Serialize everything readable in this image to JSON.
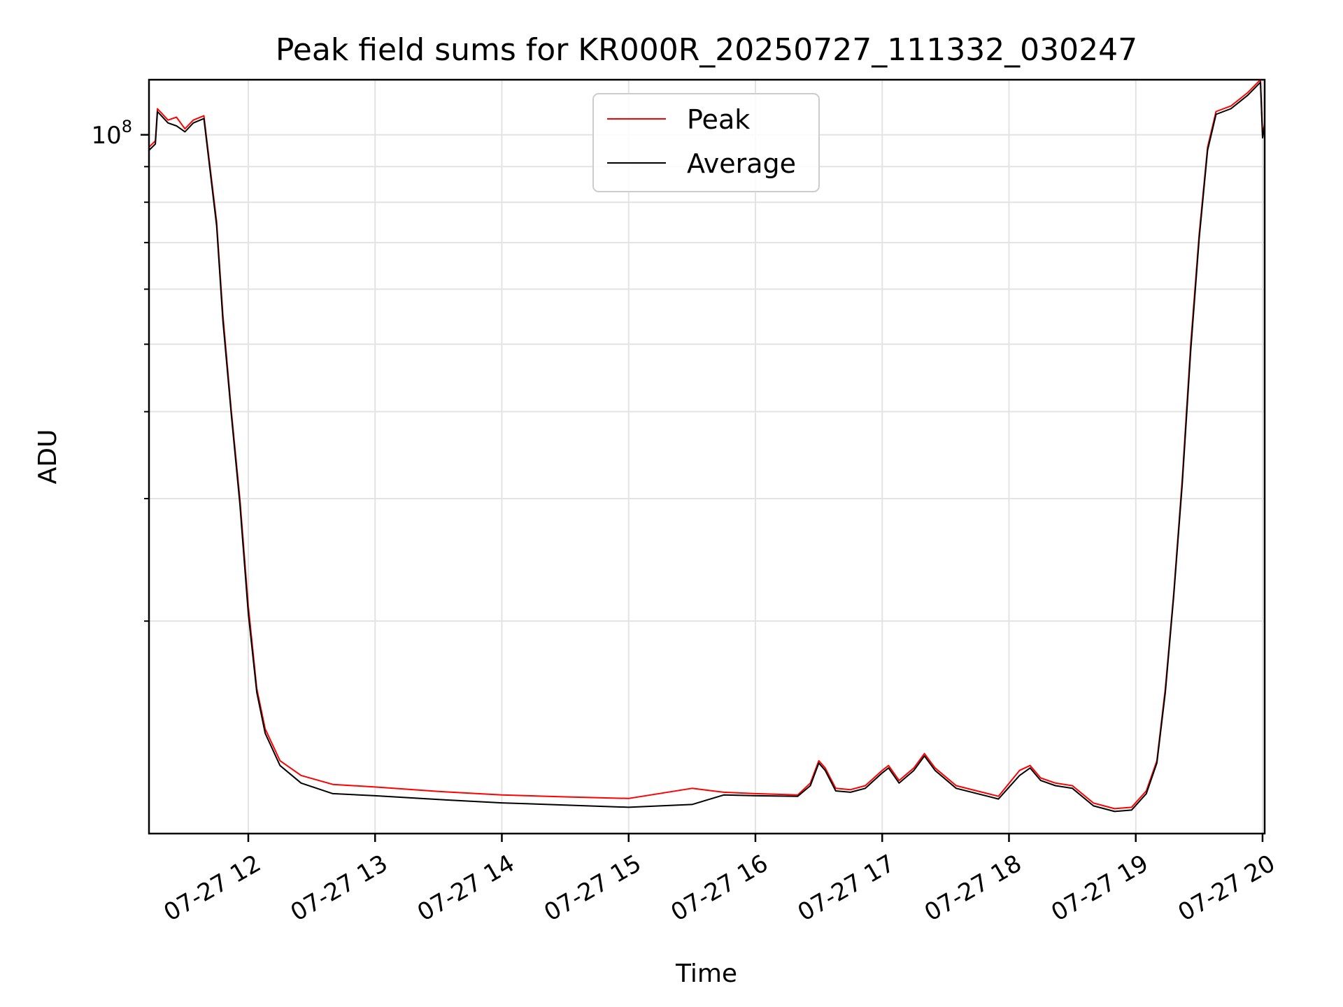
{
  "chart_data": {
    "type": "line",
    "title": "Peak field sums for KR000R_20250727_111332_030247",
    "xlabel": "Time",
    "ylabel": "ADU",
    "y_scale": "log",
    "ylim": [
      9900000,
      120000000
    ],
    "xlim": [
      "2025-07-27 11:13",
      "2025-07-27 20:01"
    ],
    "grid": true,
    "legend_position": "top-center",
    "x_ticks": [
      {
        "value": "2025-07-27 12:00",
        "label": "07-27 12"
      },
      {
        "value": "2025-07-27 13:00",
        "label": "07-27 13"
      },
      {
        "value": "2025-07-27 14:00",
        "label": "07-27 14"
      },
      {
        "value": "2025-07-27 15:00",
        "label": "07-27 15"
      },
      {
        "value": "2025-07-27 16:00",
        "label": "07-27 16"
      },
      {
        "value": "2025-07-27 17:00",
        "label": "07-27 17"
      },
      {
        "value": "2025-07-27 18:00",
        "label": "07-27 18"
      },
      {
        "value": "2025-07-27 19:00",
        "label": "07-27 19"
      },
      {
        "value": "2025-07-27 20:00",
        "label": "07-27 20"
      }
    ],
    "y_major_ticks": [
      {
        "value": 100000000,
        "base": "10",
        "exponent": "8"
      }
    ],
    "y_minor_ticks": [
      20000000,
      30000000,
      40000000,
      50000000,
      60000000,
      70000000,
      80000000,
      90000000
    ],
    "series": [
      {
        "name": "Peak",
        "color": "#ff0000",
        "points": [
          [
            "2025-07-27 11:13",
            96000000
          ],
          [
            "2025-07-27 11:16",
            98000000
          ],
          [
            "2025-07-27 11:17",
            109000000
          ],
          [
            "2025-07-27 11:22",
            105000000
          ],
          [
            "2025-07-27 11:26",
            106000000
          ],
          [
            "2025-07-27 11:30",
            102000000
          ],
          [
            "2025-07-27 11:34",
            105000000
          ],
          [
            "2025-07-27 11:39",
            106500000
          ],
          [
            "2025-07-27 11:45",
            75000000
          ],
          [
            "2025-07-27 11:48",
            55000000
          ],
          [
            "2025-07-27 11:52",
            40000000
          ],
          [
            "2025-07-27 11:56",
            30000000
          ],
          [
            "2025-07-27 12:00",
            21000000
          ],
          [
            "2025-07-27 12:04",
            16000000
          ],
          [
            "2025-07-27 12:08",
            14000000
          ],
          [
            "2025-07-27 12:15",
            12600000
          ],
          [
            "2025-07-27 12:25",
            12000000
          ],
          [
            "2025-07-27 12:40",
            11650000
          ],
          [
            "2025-07-27 13:00",
            11550000
          ],
          [
            "2025-07-27 13:30",
            11380000
          ],
          [
            "2025-07-27 14:00",
            11250000
          ],
          [
            "2025-07-27 14:30",
            11180000
          ],
          [
            "2025-07-27 15:00",
            11120000
          ],
          [
            "2025-07-27 15:30",
            11500000
          ],
          [
            "2025-07-27 15:45",
            11350000
          ],
          [
            "2025-07-27 16:00",
            11300000
          ],
          [
            "2025-07-27 16:20",
            11250000
          ],
          [
            "2025-07-27 16:26",
            11700000
          ],
          [
            "2025-07-27 16:30",
            12600000
          ],
          [
            "2025-07-27 16:33",
            12300000
          ],
          [
            "2025-07-27 16:38",
            11500000
          ],
          [
            "2025-07-27 16:45",
            11450000
          ],
          [
            "2025-07-27 16:52",
            11600000
          ],
          [
            "2025-07-27 17:00",
            12200000
          ],
          [
            "2025-07-27 17:03",
            12400000
          ],
          [
            "2025-07-27 17:08",
            11800000
          ],
          [
            "2025-07-27 17:15",
            12300000
          ],
          [
            "2025-07-27 17:20",
            12900000
          ],
          [
            "2025-07-27 17:25",
            12300000
          ],
          [
            "2025-07-27 17:35",
            11600000
          ],
          [
            "2025-07-27 17:50",
            11300000
          ],
          [
            "2025-07-27 17:55",
            11200000
          ],
          [
            "2025-07-27 18:05",
            12200000
          ],
          [
            "2025-07-27 18:10",
            12400000
          ],
          [
            "2025-07-27 18:15",
            11900000
          ],
          [
            "2025-07-27 18:22",
            11700000
          ],
          [
            "2025-07-27 18:30",
            11600000
          ],
          [
            "2025-07-27 18:40",
            10950000
          ],
          [
            "2025-07-27 18:50",
            10750000
          ],
          [
            "2025-07-27 18:58",
            10800000
          ],
          [
            "2025-07-27 19:05",
            11400000
          ],
          [
            "2025-07-27 19:10",
            12600000
          ],
          [
            "2025-07-27 19:14",
            16000000
          ],
          [
            "2025-07-27 19:18",
            22000000
          ],
          [
            "2025-07-27 19:22",
            32000000
          ],
          [
            "2025-07-27 19:26",
            50000000
          ],
          [
            "2025-07-27 19:30",
            72000000
          ],
          [
            "2025-07-27 19:34",
            96000000
          ],
          [
            "2025-07-27 19:38",
            108000000
          ],
          [
            "2025-07-27 19:45",
            110000000
          ],
          [
            "2025-07-27 19:53",
            115000000
          ],
          [
            "2025-07-27 19:59",
            120000000
          ],
          [
            "2025-07-27 20:00",
            100000000
          ],
          [
            "2025-07-27 20:01",
            104000000
          ]
        ]
      },
      {
        "name": "Average",
        "color": "#000000",
        "points": [
          [
            "2025-07-27 11:13",
            95000000
          ],
          [
            "2025-07-27 11:16",
            97000000
          ],
          [
            "2025-07-27 11:17",
            108000000
          ],
          [
            "2025-07-27 11:22",
            104000000
          ],
          [
            "2025-07-27 11:26",
            103000000
          ],
          [
            "2025-07-27 11:30",
            101000000
          ],
          [
            "2025-07-27 11:34",
            104000000
          ],
          [
            "2025-07-27 11:39",
            105500000
          ],
          [
            "2025-07-27 11:45",
            74000000
          ],
          [
            "2025-07-27 11:48",
            54000000
          ],
          [
            "2025-07-27 11:52",
            39500000
          ],
          [
            "2025-07-27 11:56",
            29500000
          ],
          [
            "2025-07-27 12:00",
            20500000
          ],
          [
            "2025-07-27 12:04",
            15800000
          ],
          [
            "2025-07-27 12:08",
            13800000
          ],
          [
            "2025-07-27 12:15",
            12400000
          ],
          [
            "2025-07-27 12:25",
            11700000
          ],
          [
            "2025-07-27 12:40",
            11300000
          ],
          [
            "2025-07-27 13:00",
            11220000
          ],
          [
            "2025-07-27 13:30",
            11080000
          ],
          [
            "2025-07-27 14:00",
            10960000
          ],
          [
            "2025-07-27 14:30",
            10880000
          ],
          [
            "2025-07-27 15:00",
            10800000
          ],
          [
            "2025-07-27 15:30",
            10900000
          ],
          [
            "2025-07-27 15:45",
            11250000
          ],
          [
            "2025-07-27 16:00",
            11220000
          ],
          [
            "2025-07-27 16:20",
            11200000
          ],
          [
            "2025-07-27 16:26",
            11600000
          ],
          [
            "2025-07-27 16:30",
            12500000
          ],
          [
            "2025-07-27 16:33",
            12200000
          ],
          [
            "2025-07-27 16:38",
            11400000
          ],
          [
            "2025-07-27 16:45",
            11350000
          ],
          [
            "2025-07-27 16:52",
            11500000
          ],
          [
            "2025-07-27 17:00",
            12100000
          ],
          [
            "2025-07-27 17:03",
            12300000
          ],
          [
            "2025-07-27 17:08",
            11700000
          ],
          [
            "2025-07-27 17:15",
            12200000
          ],
          [
            "2025-07-27 17:20",
            12800000
          ],
          [
            "2025-07-27 17:25",
            12200000
          ],
          [
            "2025-07-27 17:35",
            11500000
          ],
          [
            "2025-07-27 17:50",
            11200000
          ],
          [
            "2025-07-27 17:55",
            11100000
          ],
          [
            "2025-07-27 18:05",
            12000000
          ],
          [
            "2025-07-27 18:10",
            12300000
          ],
          [
            "2025-07-27 18:15",
            11800000
          ],
          [
            "2025-07-27 18:22",
            11600000
          ],
          [
            "2025-07-27 18:30",
            11500000
          ],
          [
            "2025-07-27 18:40",
            10850000
          ],
          [
            "2025-07-27 18:50",
            10650000
          ],
          [
            "2025-07-27 18:58",
            10700000
          ],
          [
            "2025-07-27 19:05",
            11300000
          ],
          [
            "2025-07-27 19:10",
            12500000
          ],
          [
            "2025-07-27 19:14",
            15800000
          ],
          [
            "2025-07-27 19:18",
            21800000
          ],
          [
            "2025-07-27 19:22",
            31500000
          ],
          [
            "2025-07-27 19:26",
            49000000
          ],
          [
            "2025-07-27 19:30",
            71000000
          ],
          [
            "2025-07-27 19:34",
            95000000
          ],
          [
            "2025-07-27 19:38",
            107000000
          ],
          [
            "2025-07-27 19:45",
            109000000
          ],
          [
            "2025-07-27 19:53",
            114000000
          ],
          [
            "2025-07-27 19:59",
            119000000
          ],
          [
            "2025-07-27 20:00",
            99000000
          ],
          [
            "2025-07-27 20:01",
            103000000
          ]
        ]
      }
    ]
  }
}
